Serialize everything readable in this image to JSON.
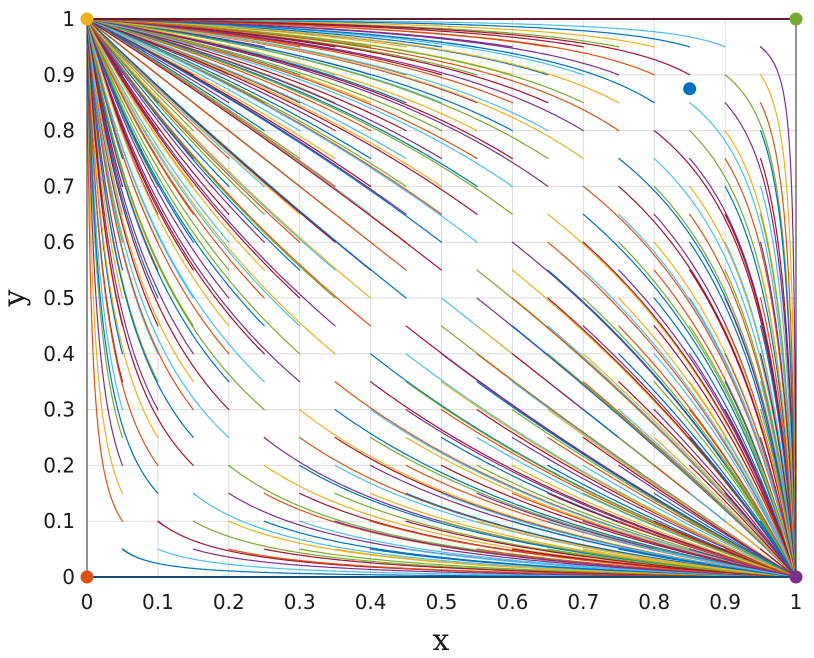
{
  "chart_data": {
    "type": "line",
    "title": "",
    "xlabel": "x",
    "ylabel": "y",
    "xlim": [
      0,
      1
    ],
    "ylim": [
      0,
      1
    ],
    "xticks": [
      0,
      0.1,
      0.2,
      0.3,
      0.4,
      0.5,
      0.6,
      0.7,
      0.8,
      0.9,
      1
    ],
    "yticks": [
      0,
      0.1,
      0.2,
      0.3,
      0.4,
      0.5,
      0.6,
      0.7,
      0.8,
      0.9,
      1
    ],
    "xtick_labels": [
      "0",
      "0.1",
      "0.2",
      "0.3",
      "0.4",
      "0.5",
      "0.6",
      "0.7",
      "0.8",
      "0.9",
      "1"
    ],
    "ytick_labels": [
      "0",
      "0.1",
      "0.2",
      "0.3",
      "0.4",
      "0.5",
      "0.6",
      "0.7",
      "0.8",
      "0.9",
      "1"
    ],
    "grid": true,
    "description_of_series": "phase-portrait trajectories: points starting above the separatrix through the interior saddle flow to (0,1); points below flow to (1,0)",
    "series_colors": [
      "#0072BD",
      "#D95319",
      "#EDB120",
      "#7E2F8E",
      "#77AC30",
      "#4DBEEE",
      "#A2142F"
    ],
    "interior_equilibrium": {
      "x": 0.85,
      "y": 0.875,
      "color": "#0072BD"
    },
    "corner_points": [
      {
        "x": 0,
        "y": 0,
        "color": "#D95319"
      },
      {
        "x": 0,
        "y": 1,
        "color": "#EDB120"
      },
      {
        "x": 1,
        "y": 0,
        "color": "#7E2F8E"
      },
      {
        "x": 1,
        "y": 1,
        "color": "#77AC30"
      }
    ],
    "boundary_lines": [
      {
        "from": [
          0,
          1
        ],
        "to": [
          1,
          1
        ],
        "color": "#A2142F"
      },
      {
        "from": [
          0,
          0
        ],
        "to": [
          1,
          0
        ],
        "color": "#0072BD"
      }
    ],
    "initial_x": [
      0.05,
      0.1,
      0.15,
      0.2,
      0.25,
      0.3,
      0.35,
      0.4,
      0.45,
      0.5,
      0.55,
      0.6,
      0.65,
      0.7,
      0.75,
      0.8,
      0.85,
      0.9,
      0.95
    ],
    "initial_y": [
      0.05,
      0.1,
      0.15,
      0.2,
      0.25,
      0.3,
      0.35,
      0.4,
      0.45,
      0.5,
      0.55,
      0.6,
      0.65,
      0.7,
      0.75,
      0.8,
      0.85,
      0.9,
      0.95
    ],
    "separatrix_slope": 1.03
  }
}
